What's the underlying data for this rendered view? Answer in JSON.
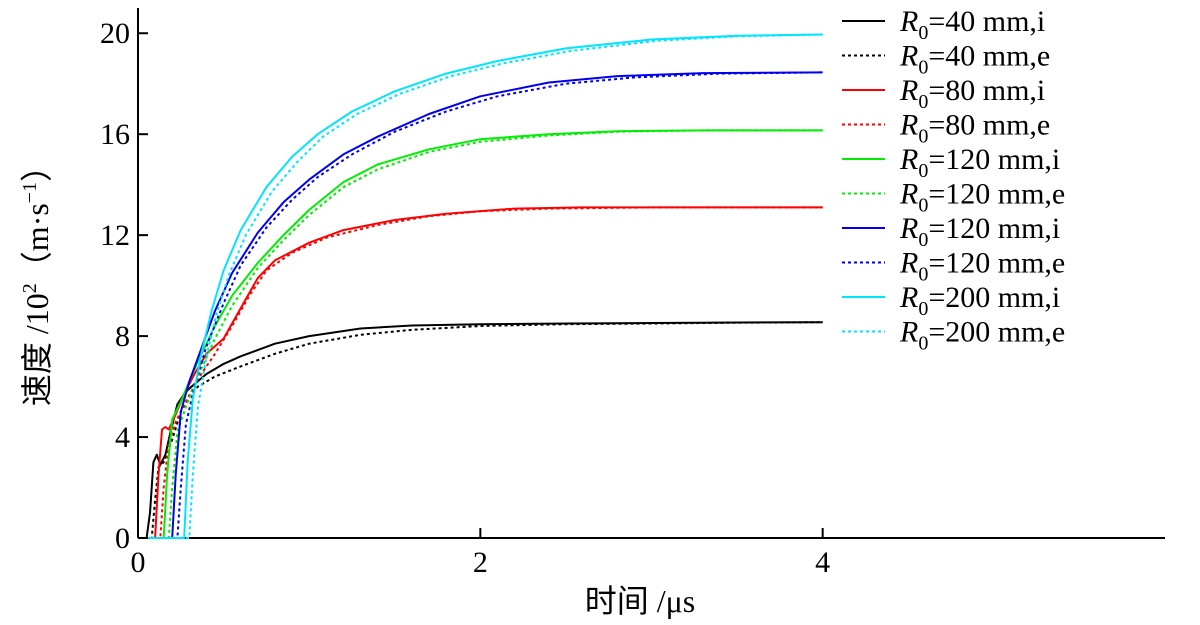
{
  "chart_data": {
    "type": "line",
    "xlabel": "时间 /μs",
    "ylabel": "速度 /10",
    "ylabel_sup": "2",
    "ylabel_unit": "（m·s",
    "ylabel_unit_sup": "−1",
    "ylabel_close": "）",
    "xlim": [
      0,
      6
    ],
    "ylim": [
      0,
      21
    ],
    "xticks": [
      0,
      2,
      4
    ],
    "yticks": [
      0,
      4,
      8,
      12,
      16,
      20
    ],
    "grid": false,
    "legend_position": "top-right",
    "series": [
      {
        "name": "R0=40 mm,i",
        "label_var": "R",
        "label_sub": "0",
        "label_rest": "=40 mm,i",
        "color": "#000000",
        "dash": "solid",
        "points": [
          [
            0,
            0
          ],
          [
            0.05,
            0
          ],
          [
            0.07,
            1.0
          ],
          [
            0.09,
            3.0
          ],
          [
            0.11,
            3.3
          ],
          [
            0.13,
            2.9
          ],
          [
            0.16,
            3.3
          ],
          [
            0.19,
            4.2
          ],
          [
            0.23,
            5.3
          ],
          [
            0.28,
            5.8
          ],
          [
            0.33,
            6.1
          ],
          [
            0.4,
            6.5
          ],
          [
            0.5,
            6.9
          ],
          [
            0.6,
            7.2
          ],
          [
            0.8,
            7.7
          ],
          [
            1.0,
            8.0
          ],
          [
            1.3,
            8.3
          ],
          [
            1.6,
            8.42
          ],
          [
            2.0,
            8.47
          ],
          [
            2.5,
            8.5
          ],
          [
            3.0,
            8.52
          ],
          [
            3.5,
            8.54
          ],
          [
            4.0,
            8.55
          ]
        ]
      },
      {
        "name": "R0=40 mm,e",
        "label_var": "R",
        "label_sub": "0",
        "label_rest": "=40 mm,e",
        "color": "#000000",
        "dash": "dot",
        "points": [
          [
            0,
            0
          ],
          [
            0.08,
            0
          ],
          [
            0.1,
            1.5
          ],
          [
            0.12,
            2.8
          ],
          [
            0.15,
            3.0
          ],
          [
            0.2,
            3.9
          ],
          [
            0.25,
            5.0
          ],
          [
            0.3,
            5.6
          ],
          [
            0.35,
            6.0
          ],
          [
            0.45,
            6.4
          ],
          [
            0.6,
            6.8
          ],
          [
            0.8,
            7.3
          ],
          [
            1.0,
            7.7
          ],
          [
            1.3,
            8.05
          ],
          [
            1.6,
            8.25
          ],
          [
            2.0,
            8.4
          ],
          [
            2.5,
            8.47
          ],
          [
            3.0,
            8.5
          ],
          [
            3.5,
            8.53
          ],
          [
            4.0,
            8.55
          ]
        ]
      },
      {
        "name": "R0=80 mm,i",
        "label_var": "R",
        "label_sub": "0",
        "label_rest": "=80 mm,i",
        "color": "#ff0000",
        "dash": "solid",
        "points": [
          [
            0,
            0
          ],
          [
            0.1,
            0
          ],
          [
            0.12,
            2.5
          ],
          [
            0.14,
            4.3
          ],
          [
            0.16,
            4.4
          ],
          [
            0.18,
            4.3
          ],
          [
            0.22,
            4.9
          ],
          [
            0.27,
            5.7
          ],
          [
            0.33,
            6.5
          ],
          [
            0.4,
            7.3
          ],
          [
            0.5,
            7.9
          ],
          [
            0.6,
            9.1
          ],
          [
            0.7,
            10.3
          ],
          [
            0.8,
            11.0
          ],
          [
            1.0,
            11.7
          ],
          [
            1.2,
            12.2
          ],
          [
            1.5,
            12.6
          ],
          [
            1.8,
            12.85
          ],
          [
            2.2,
            13.05
          ],
          [
            2.6,
            13.1
          ],
          [
            3.0,
            13.1
          ],
          [
            3.5,
            13.1
          ],
          [
            4.0,
            13.1
          ]
        ]
      },
      {
        "name": "R0=80 mm,e",
        "label_var": "R",
        "label_sub": "0",
        "label_rest": "=80 mm,e",
        "color": "#ff0000",
        "dash": "dot",
        "points": [
          [
            0,
            0
          ],
          [
            0.13,
            0
          ],
          [
            0.15,
            2.0
          ],
          [
            0.18,
            3.8
          ],
          [
            0.22,
            4.6
          ],
          [
            0.28,
            5.4
          ],
          [
            0.35,
            6.3
          ],
          [
            0.45,
            7.3
          ],
          [
            0.55,
            8.4
          ],
          [
            0.65,
            9.6
          ],
          [
            0.75,
            10.6
          ],
          [
            0.9,
            11.3
          ],
          [
            1.1,
            11.9
          ],
          [
            1.4,
            12.4
          ],
          [
            1.7,
            12.75
          ],
          [
            2.0,
            12.95
          ],
          [
            2.4,
            13.05
          ],
          [
            3.0,
            13.1
          ],
          [
            3.5,
            13.1
          ],
          [
            4.0,
            13.1
          ]
        ]
      },
      {
        "name": "R0=120 mm,i",
        "label_var": "R",
        "label_sub": "0",
        "label_rest": "=120 mm,i",
        "color": "#00ee00",
        "dash": "solid",
        "points": [
          [
            0,
            0
          ],
          [
            0.15,
            0
          ],
          [
            0.17,
            2.5
          ],
          [
            0.2,
            4.7
          ],
          [
            0.25,
            5.4
          ],
          [
            0.3,
            6.2
          ],
          [
            0.35,
            7.0
          ],
          [
            0.45,
            8.4
          ],
          [
            0.55,
            9.6
          ],
          [
            0.7,
            10.9
          ],
          [
            0.85,
            12.0
          ],
          [
            1.0,
            13.0
          ],
          [
            1.2,
            14.1
          ],
          [
            1.4,
            14.8
          ],
          [
            1.7,
            15.4
          ],
          [
            2.0,
            15.8
          ],
          [
            2.4,
            16.0
          ],
          [
            2.8,
            16.12
          ],
          [
            3.3,
            16.15
          ],
          [
            4.0,
            16.15
          ]
        ]
      },
      {
        "name": "R0=120 mm,e",
        "label_var": "R",
        "label_sub": "0",
        "label_rest": "=120 mm,e",
        "color": "#00ee00",
        "dash": "dot",
        "points": [
          [
            0,
            0
          ],
          [
            0.18,
            0
          ],
          [
            0.2,
            2.0
          ],
          [
            0.23,
            4.2
          ],
          [
            0.28,
            5.2
          ],
          [
            0.35,
            6.4
          ],
          [
            0.45,
            7.9
          ],
          [
            0.55,
            9.2
          ],
          [
            0.7,
            10.7
          ],
          [
            0.85,
            11.8
          ],
          [
            1.0,
            12.8
          ],
          [
            1.2,
            13.9
          ],
          [
            1.4,
            14.6
          ],
          [
            1.7,
            15.3
          ],
          [
            2.0,
            15.7
          ],
          [
            2.4,
            15.95
          ],
          [
            2.8,
            16.1
          ],
          [
            3.3,
            16.15
          ],
          [
            4.0,
            16.15
          ]
        ]
      },
      {
        "name": "R0=120 mm,i",
        "label_var": "R",
        "label_sub": "0",
        "label_rest": "=120 mm,i",
        "color": "#0000ee",
        "dash": "solid",
        "points": [
          [
            0,
            0
          ],
          [
            0.2,
            0
          ],
          [
            0.22,
            2.5
          ],
          [
            0.25,
            5.0
          ],
          [
            0.3,
            6.2
          ],
          [
            0.37,
            7.5
          ],
          [
            0.45,
            9.0
          ],
          [
            0.55,
            10.5
          ],
          [
            0.7,
            12.1
          ],
          [
            0.85,
            13.3
          ],
          [
            1.0,
            14.2
          ],
          [
            1.2,
            15.2
          ],
          [
            1.4,
            15.9
          ],
          [
            1.7,
            16.8
          ],
          [
            2.0,
            17.5
          ],
          [
            2.4,
            18.05
          ],
          [
            2.8,
            18.3
          ],
          [
            3.3,
            18.42
          ],
          [
            4.0,
            18.45
          ]
        ]
      },
      {
        "name": "R0=120 mm,e",
        "label_var": "R",
        "label_sub": "0",
        "label_rest": "=120 mm,e",
        "color": "#0000ee",
        "dash": "dot",
        "points": [
          [
            0,
            0
          ],
          [
            0.23,
            0
          ],
          [
            0.25,
            2.0
          ],
          [
            0.28,
            4.5
          ],
          [
            0.33,
            6.0
          ],
          [
            0.4,
            7.6
          ],
          [
            0.5,
            9.3
          ],
          [
            0.6,
            10.8
          ],
          [
            0.75,
            12.3
          ],
          [
            0.9,
            13.4
          ],
          [
            1.05,
            14.3
          ],
          [
            1.25,
            15.2
          ],
          [
            1.5,
            16.1
          ],
          [
            1.8,
            16.9
          ],
          [
            2.1,
            17.5
          ],
          [
            2.5,
            18.0
          ],
          [
            2.9,
            18.25
          ],
          [
            3.4,
            18.4
          ],
          [
            4.0,
            18.45
          ]
        ]
      },
      {
        "name": "R0=200 mm,i",
        "label_var": "R",
        "label_sub": "0",
        "label_rest": "=200 mm,i",
        "color": "#00e5ff",
        "dash": "solid",
        "points": [
          [
            0,
            0
          ],
          [
            0.27,
            0
          ],
          [
            0.29,
            3.0
          ],
          [
            0.32,
            5.5
          ],
          [
            0.37,
            7.3
          ],
          [
            0.43,
            9.0
          ],
          [
            0.5,
            10.6
          ],
          [
            0.6,
            12.2
          ],
          [
            0.75,
            13.9
          ],
          [
            0.9,
            15.1
          ],
          [
            1.05,
            16.0
          ],
          [
            1.25,
            16.9
          ],
          [
            1.5,
            17.7
          ],
          [
            1.8,
            18.4
          ],
          [
            2.1,
            18.9
          ],
          [
            2.5,
            19.4
          ],
          [
            3.0,
            19.75
          ],
          [
            3.5,
            19.9
          ],
          [
            4.0,
            19.95
          ]
        ]
      },
      {
        "name": "R0=200 mm,e",
        "label_var": "R",
        "label_sub": "0",
        "label_rest": "=200 mm,e",
        "color": "#00e5ff",
        "dash": "dot",
        "points": [
          [
            0,
            0
          ],
          [
            0.3,
            0
          ],
          [
            0.32,
            2.5
          ],
          [
            0.35,
            5.2
          ],
          [
            0.4,
            7.2
          ],
          [
            0.46,
            8.9
          ],
          [
            0.53,
            10.4
          ],
          [
            0.63,
            12.0
          ],
          [
            0.78,
            13.7
          ],
          [
            0.93,
            14.9
          ],
          [
            1.08,
            15.9
          ],
          [
            1.28,
            16.8
          ],
          [
            1.53,
            17.6
          ],
          [
            1.83,
            18.3
          ],
          [
            2.13,
            18.8
          ],
          [
            2.53,
            19.3
          ],
          [
            3.03,
            19.7
          ],
          [
            3.5,
            19.88
          ],
          [
            4.0,
            19.95
          ]
        ]
      }
    ]
  }
}
